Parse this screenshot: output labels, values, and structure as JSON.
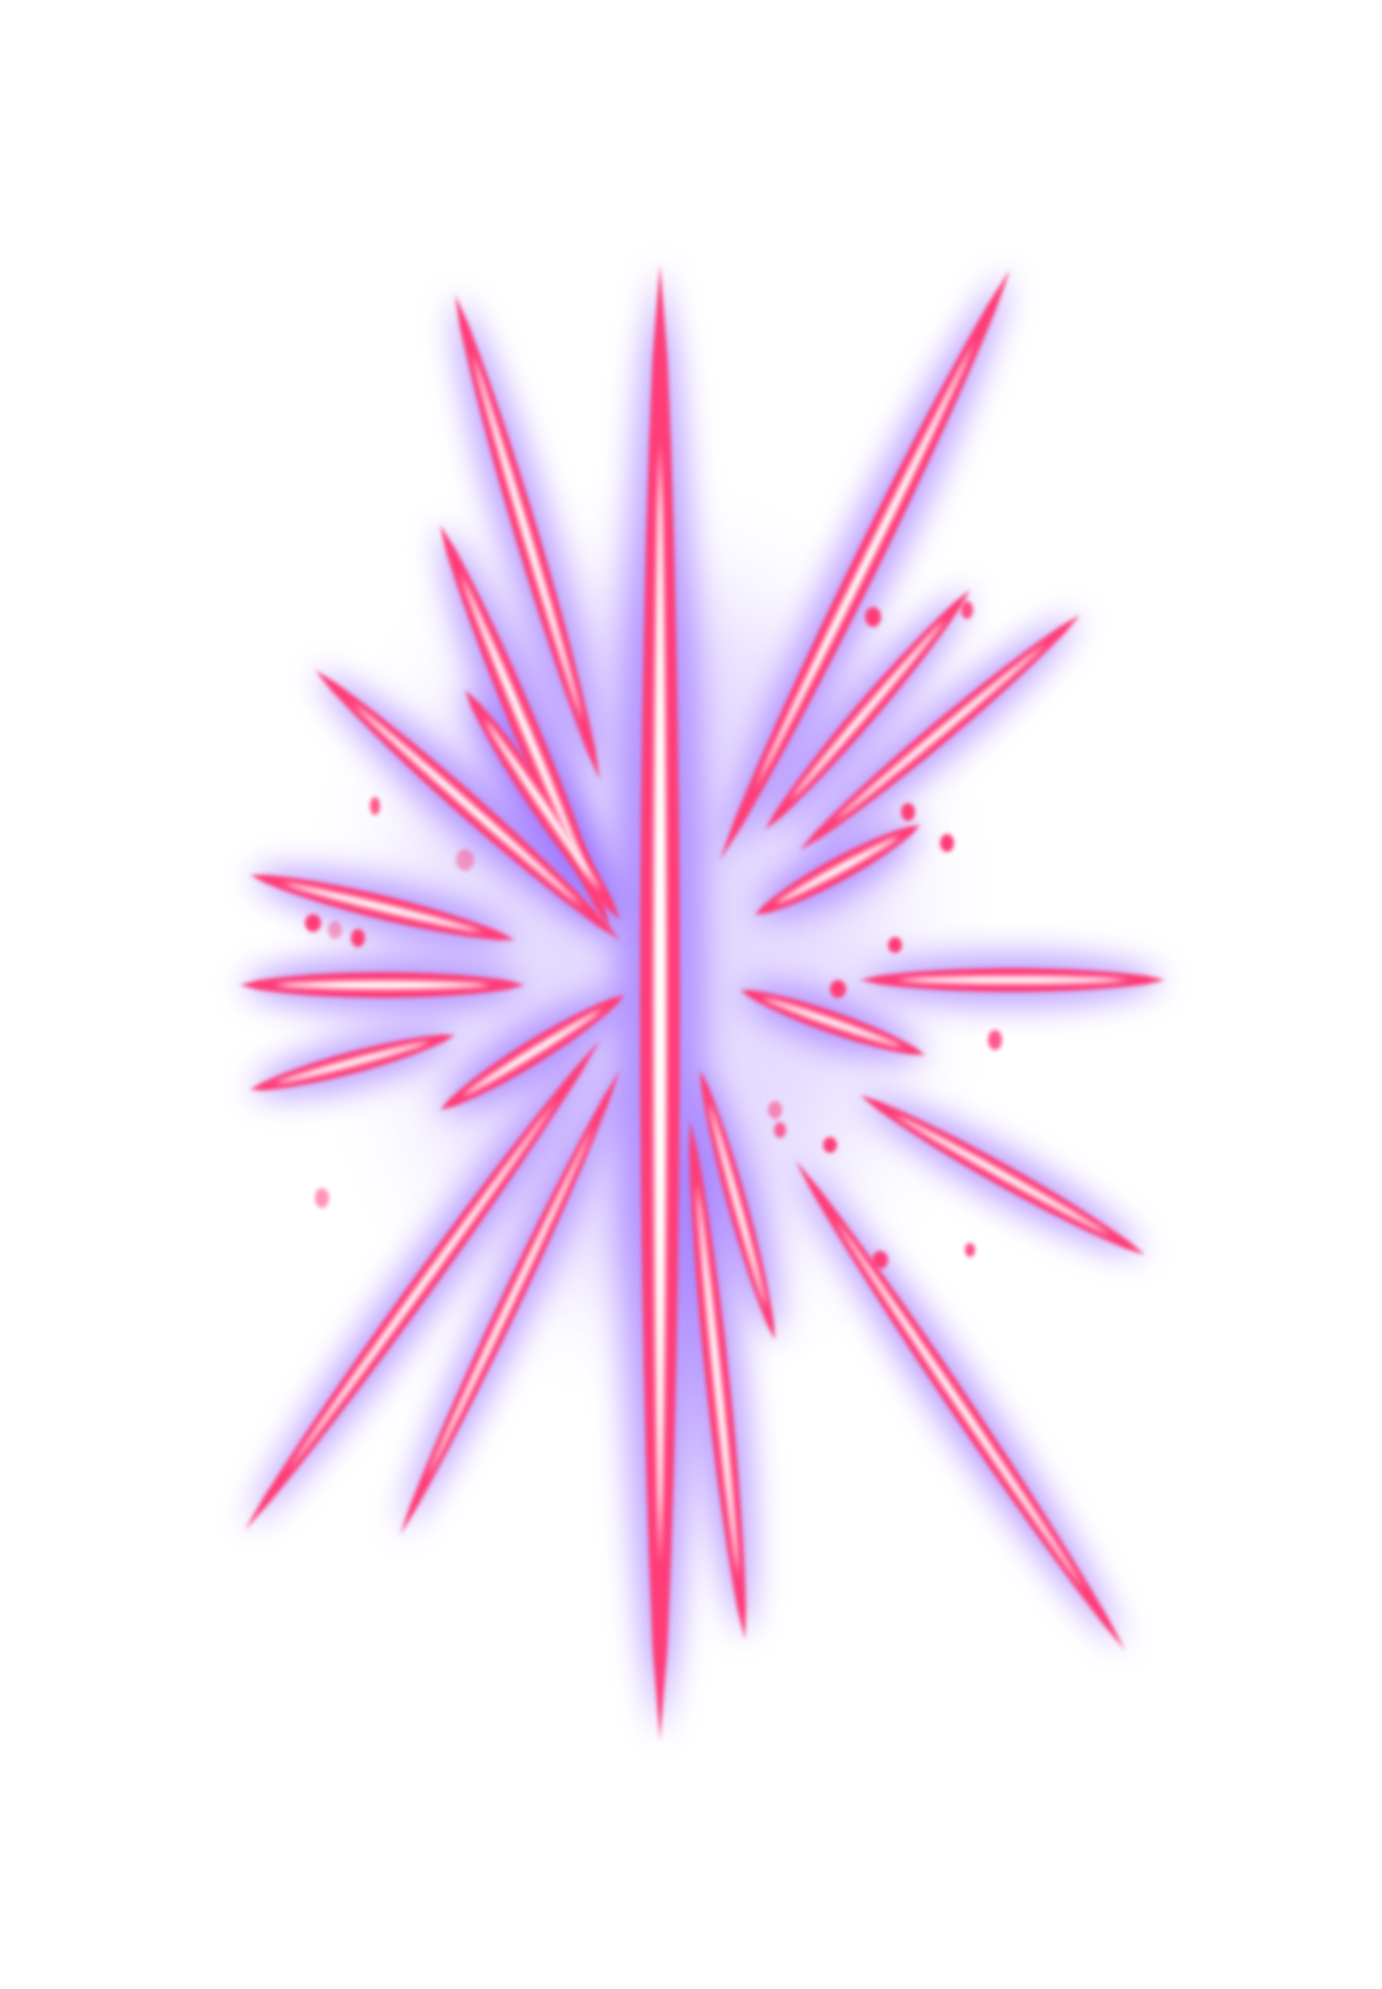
{
  "image": {
    "subject": "neon-starburst",
    "background_color": "#ffffff",
    "colors": {
      "ray_core": "#ffffff",
      "ray_body": "#ff3d78",
      "glow": "#8a5cff",
      "spark": "#ff3d78"
    }
  }
}
